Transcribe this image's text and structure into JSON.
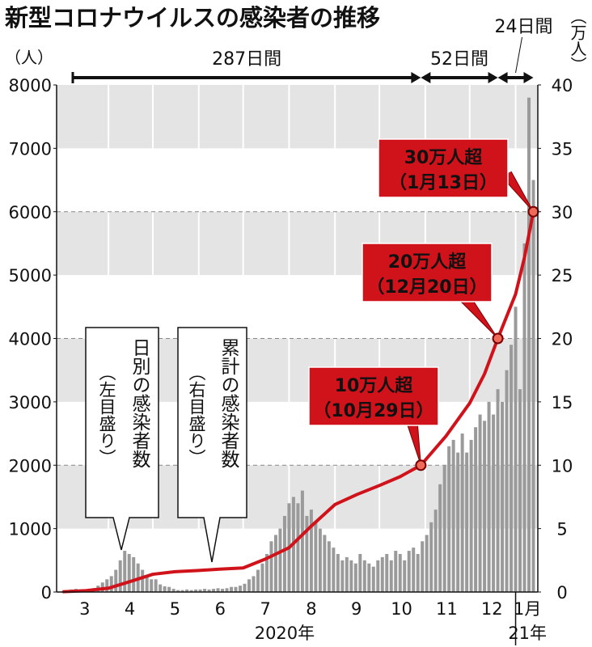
{
  "chart_data": {
    "type": "bar_line",
    "title": "新型コロナウイルスの感染者の推移",
    "ylabel": "（人）",
    "y2label": "（万人）",
    "xlim": [
      -4,
      321
    ],
    "ylim": [
      0,
      8000
    ],
    "yticks": [
      0,
      1000,
      2000,
      3000,
      4000,
      5000,
      6000,
      7000,
      8000
    ],
    "y2lim": [
      0,
      40
    ],
    "y2ticks": [
      0,
      5,
      10,
      15,
      20,
      25,
      30,
      35,
      40
    ],
    "dashed_grid": [
      2000,
      4000,
      6000
    ],
    "bands": true,
    "month_starts": [
      31,
      61,
      92,
      122,
      153,
      184,
      214,
      245,
      275,
      306
    ],
    "xticks": [
      {
        "value": 15,
        "label": "3"
      },
      {
        "value": 45.5,
        "label": "4"
      },
      {
        "value": 76,
        "label": "5"
      },
      {
        "value": 106.5,
        "label": "6"
      },
      {
        "value": 137,
        "label": "7"
      },
      {
        "value": 168,
        "label": "8"
      },
      {
        "value": 198.5,
        "label": "9"
      },
      {
        "value": 229,
        "label": "10"
      },
      {
        "value": 259.5,
        "label": "11"
      },
      {
        "value": 290,
        "label": "12"
      },
      {
        "value": 314,
        "label": "1月"
      }
    ],
    "year_labels": [
      {
        "value": 150,
        "label": "2020年"
      },
      {
        "value": 314,
        "label": "21年"
      }
    ],
    "series": [
      {
        "name": "日別の感染者数",
        "scale_note": "（左目盛り）",
        "type": "bar",
        "color": "#9a9a9a",
        "x": [
          0,
          3,
          6,
          9,
          12,
          15,
          18,
          21,
          24,
          27,
          30,
          33,
          36,
          39,
          42,
          45,
          48,
          51,
          54,
          57,
          60,
          63,
          66,
          69,
          72,
          75,
          78,
          81,
          84,
          87,
          90,
          93,
          96,
          99,
          102,
          105,
          108,
          111,
          114,
          117,
          120,
          123,
          126,
          129,
          132,
          135,
          138,
          141,
          144,
          147,
          150,
          153,
          156,
          159,
          162,
          165,
          168,
          171,
          174,
          177,
          180,
          183,
          186,
          189,
          192,
          195,
          198,
          201,
          204,
          207,
          210,
          213,
          216,
          219,
          222,
          225,
          228,
          231,
          234,
          237,
          240,
          243,
          246,
          249,
          252,
          255,
          258,
          261,
          264,
          267,
          270,
          273,
          276,
          279,
          282,
          285,
          288,
          291,
          294,
          297,
          300,
          303,
          306,
          309,
          312,
          315,
          318
        ],
        "values": [
          10,
          30,
          40,
          50,
          40,
          30,
          40,
          60,
          100,
          150,
          200,
          250,
          350,
          500,
          650,
          600,
          550,
          450,
          350,
          250,
          200,
          200,
          120,
          90,
          80,
          50,
          30,
          30,
          40,
          30,
          40,
          40,
          50,
          40,
          50,
          60,
          50,
          60,
          80,
          80,
          100,
          130,
          200,
          250,
          350,
          450,
          600,
          800,
          900,
          1000,
          1200,
          1400,
          1500,
          1400,
          1600,
          1200,
          1300,
          1100,
          1000,
          900,
          800,
          700,
          600,
          500,
          550,
          500,
          450,
          600,
          500,
          450,
          400,
          500,
          550,
          600,
          500,
          650,
          600,
          500,
          650,
          700,
          600,
          800,
          900,
          1100,
          1300,
          1700,
          2000,
          2300,
          2400,
          2200,
          2500,
          2200,
          2400,
          2600,
          2800,
          2700,
          3000,
          2800,
          3200,
          3000,
          3500,
          3900,
          4500,
          3200,
          5500,
          7800,
          6500
        ]
      },
      {
        "name": "累計の感染者数",
        "scale_note": "（右目盛り）",
        "type": "line",
        "axis": "y2",
        "color": "#d0121b",
        "x": [
          0,
          15,
          31,
          45,
          61,
          76,
          92,
          106,
          122,
          137,
          153,
          168,
          184,
          199,
          214,
          228,
          242,
          259,
          275,
          285,
          294,
          306,
          312,
          318
        ],
        "values": [
          0.02,
          0.1,
          0.3,
          0.8,
          1.4,
          1.6,
          1.7,
          1.8,
          1.9,
          2.6,
          3.5,
          5.2,
          6.9,
          7.7,
          8.4,
          9.1,
          10,
          12.3,
          14.9,
          17.2,
          20,
          23.5,
          26.4,
          30
        ]
      }
    ],
    "annotations": [
      {
        "x": 242,
        "value": 10,
        "label": "10万人超",
        "date": "（10月29日）"
      },
      {
        "x": 294,
        "value": 20,
        "label": "20万人超",
        "date": "（12月20日）"
      },
      {
        "x": 318,
        "value": 30,
        "label": "30万人超",
        "date": "（1月13日）"
      }
    ],
    "periods": [
      "287日間",
      "52日間",
      "24日間"
    ]
  }
}
